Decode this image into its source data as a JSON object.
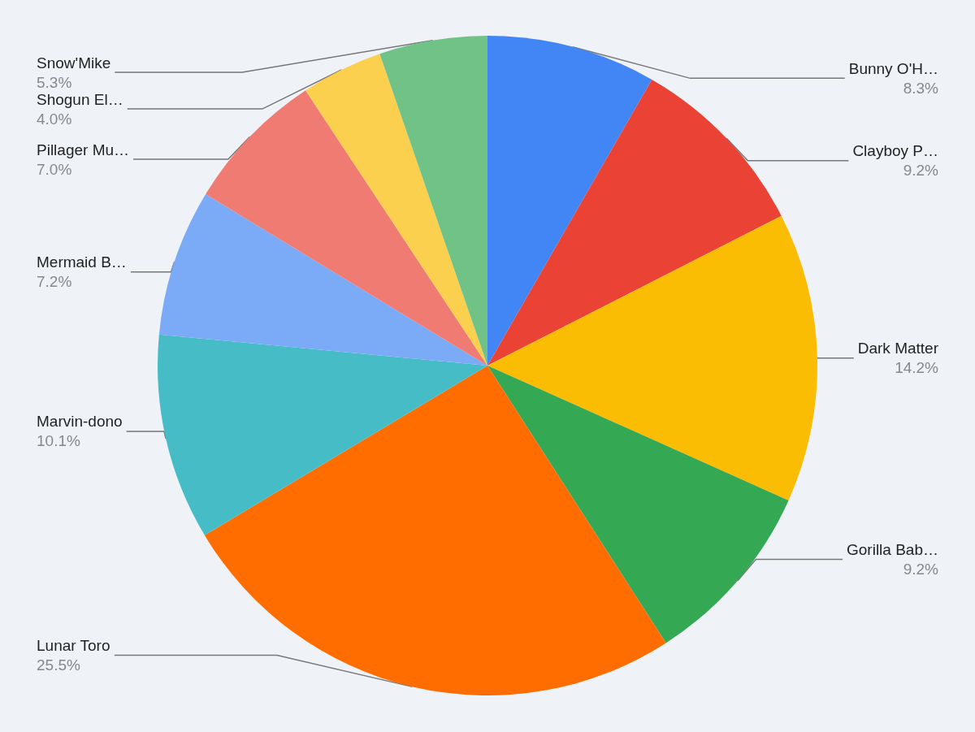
{
  "chart_data": {
    "type": "pie",
    "categories": [
      "Bunny O'H…",
      "Clayboy P…",
      "Dark Matter",
      "Gorilla Bab…",
      "Lunar Toro",
      "Marvin-dono",
      "Mermaid B…",
      "Pillager Mu…",
      "Shogun El…",
      "Snow'Mike"
    ],
    "values": [
      8.3,
      9.2,
      14.2,
      9.2,
      25.5,
      10.1,
      7.2,
      7.0,
      4.0,
      5.3
    ],
    "colors": [
      "#4285f4",
      "#ea4335",
      "#fbbc04",
      "#34a853",
      "#ff6d01",
      "#46bdc6",
      "#7baaf7",
      "#f07b72",
      "#fcd04f",
      "#71c287"
    ],
    "value_labels": [
      "8.3%",
      "9.2%",
      "14.2%",
      "9.2%",
      "25.5%",
      "10.1%",
      "7.2%",
      "7.0%",
      "4.0%",
      "5.3%"
    ],
    "legend": false
  }
}
